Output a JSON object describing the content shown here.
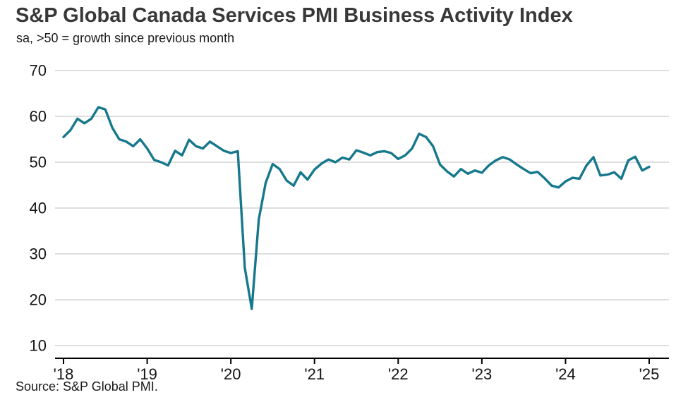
{
  "chart_data": {
    "type": "line",
    "title": "S&P Global Canada Services PMI Business Activity Index",
    "subtitle": "sa, >50 = growth since previous month",
    "source": "Source: S&P Global PMI.",
    "legend": "none",
    "grid": "horizontal",
    "xlabel": "",
    "ylabel": "",
    "ylim": [
      10,
      70
    ],
    "yticks": [
      10,
      20,
      30,
      40,
      50,
      60,
      70
    ],
    "xticks": [
      {
        "index": 0,
        "label": "'18"
      },
      {
        "index": 12,
        "label": "'19"
      },
      {
        "index": 24,
        "label": "'20"
      },
      {
        "index": 36,
        "label": "'21"
      },
      {
        "index": 48,
        "label": "'22"
      },
      {
        "index": 60,
        "label": "'23"
      },
      {
        "index": 72,
        "label": "'24"
      },
      {
        "index": 84,
        "label": "'25"
      }
    ],
    "line_color": "#16788c",
    "grid_color": "#c9c9c9",
    "axis_color": "#000000",
    "text_color": "#141414",
    "x": [
      "2018-01",
      "2018-02",
      "2018-03",
      "2018-04",
      "2018-05",
      "2018-06",
      "2018-07",
      "2018-08",
      "2018-09",
      "2018-10",
      "2018-11",
      "2018-12",
      "2019-01",
      "2019-02",
      "2019-03",
      "2019-04",
      "2019-05",
      "2019-06",
      "2019-07",
      "2019-08",
      "2019-09",
      "2019-10",
      "2019-11",
      "2019-12",
      "2020-01",
      "2020-02",
      "2020-03",
      "2020-04",
      "2020-05",
      "2020-06",
      "2020-07",
      "2020-08",
      "2020-09",
      "2020-10",
      "2020-11",
      "2020-12",
      "2021-01",
      "2021-02",
      "2021-03",
      "2021-04",
      "2021-05",
      "2021-06",
      "2021-07",
      "2021-08",
      "2021-09",
      "2021-10",
      "2021-11",
      "2021-12",
      "2022-01",
      "2022-02",
      "2022-03",
      "2022-04",
      "2022-05",
      "2022-06",
      "2022-07",
      "2022-08",
      "2022-09",
      "2022-10",
      "2022-11",
      "2022-12",
      "2023-01",
      "2023-02",
      "2023-03",
      "2023-04",
      "2023-05",
      "2023-06",
      "2023-07",
      "2023-08",
      "2023-09",
      "2023-10",
      "2023-11",
      "2023-12",
      "2024-01",
      "2024-02",
      "2024-03",
      "2024-04",
      "2024-05",
      "2024-06",
      "2024-07",
      "2024-08",
      "2024-09",
      "2024-10",
      "2024-11",
      "2024-12",
      "2025-01"
    ],
    "series": [
      {
        "name": "Services PMI Business Activity Index",
        "values": [
          55.5,
          57.0,
          59.5,
          58.5,
          59.5,
          62.0,
          61.5,
          57.5,
          55.0,
          54.5,
          53.5,
          55.0,
          53.0,
          50.5,
          50.0,
          49.3,
          52.5,
          51.5,
          54.9,
          53.5,
          53.0,
          54.5,
          53.5,
          52.5,
          52.0,
          52.4,
          27.0,
          18.0,
          37.5,
          45.5,
          49.6,
          48.5,
          46.0,
          44.9,
          47.8,
          46.2,
          48.4,
          49.7,
          50.6,
          50.0,
          51.0,
          50.6,
          52.6,
          52.1,
          51.5,
          52.2,
          52.4,
          52.0,
          50.7,
          51.5,
          53.0,
          56.2,
          55.5,
          53.5,
          49.5,
          48.0,
          46.9,
          48.5,
          47.5,
          48.2,
          47.7,
          49.3,
          50.4,
          51.1,
          50.6,
          49.5,
          48.5,
          47.6,
          47.9,
          46.5,
          44.9,
          44.5,
          45.8,
          46.6,
          46.4,
          49.3,
          51.1,
          47.1,
          47.3,
          47.8,
          46.4,
          50.4,
          51.2,
          48.2,
          49.0
        ]
      }
    ]
  }
}
